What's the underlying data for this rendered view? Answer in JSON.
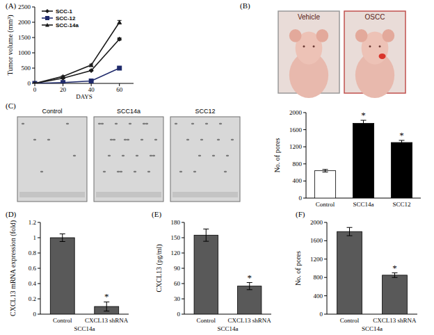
{
  "chart_data": [
    {
      "type": "line",
      "title": "(A)",
      "x_label": "DAYS",
      "y_label": "Tumor volume (mm³)",
      "x": [
        0,
        20,
        40,
        60
      ],
      "xlim": [
        0,
        70
      ],
      "xticks": [
        0,
        20,
        40,
        60
      ],
      "ylim": [
        0,
        2500
      ],
      "yticks": [
        0,
        500,
        1000,
        1500,
        2000,
        2500
      ],
      "legend": "upper left",
      "series": [
        {
          "name": "SCC-1",
          "color": "#1a1a1a",
          "marker": "diamond",
          "values": [
            0,
            170,
            420,
            1450
          ],
          "errors": [
            0,
            15,
            20,
            40
          ]
        },
        {
          "name": "SCC-12",
          "color": "#1f2a6b",
          "marker": "square",
          "values": [
            0,
            30,
            80,
            500
          ],
          "errors": [
            0,
            8,
            12,
            30
          ]
        },
        {
          "name": "SCC-14a",
          "color": "#1a1a1a",
          "marker": "triangle",
          "values": [
            0,
            230,
            600,
            2000
          ],
          "errors": [
            0,
            20,
            30,
            60
          ]
        }
      ]
    },
    {
      "type": "bar",
      "categories": [
        "Control",
        "SCC14a",
        "SCC12"
      ],
      "values": [
        640,
        1750,
        1300
      ],
      "errors": [
        30,
        70,
        50
      ],
      "colors": [
        "#ffffff",
        "#000000",
        "#000000"
      ],
      "annotations": [
        null,
        "*",
        "*"
      ],
      "y_label": "No. of pores",
      "ylim": [
        0,
        2000
      ],
      "yticks": [
        0,
        400,
        800,
        1200,
        1600,
        2000
      ]
    },
    {
      "type": "bar",
      "title": "(D)",
      "categories": [
        "Control",
        "CXCL13 shRNA"
      ],
      "x_label": "SCC14a",
      "y_label": "CXCL13 mRNA expression (fold)",
      "values": [
        1,
        0.1
      ],
      "errors": [
        0.05,
        0.06
      ],
      "color": "#595959",
      "annotations": [
        null,
        "*"
      ],
      "ylim": [
        0,
        1.2
      ],
      "yticks": [
        0,
        0.2,
        0.4,
        0.6,
        0.8,
        1,
        1.2
      ]
    },
    {
      "type": "bar",
      "title": "(E)",
      "categories": [
        "Control",
        "CXCL13 shRNA"
      ],
      "x_label": "SCC14a",
      "y_label": "CXCL13 (pg/ml)",
      "values": [
        155,
        55
      ],
      "errors": [
        12,
        7
      ],
      "color": "#595959",
      "annotations": [
        null,
        "*"
      ],
      "ylim": [
        0,
        180
      ],
      "yticks": [
        0,
        30,
        60,
        90,
        120,
        150,
        180
      ]
    },
    {
      "type": "bar",
      "title": "(F)",
      "categories": [
        "Control",
        "CXCL13 shRNA"
      ],
      "x_label": "SCC14a",
      "y_label": "No. of pores",
      "values": [
        1800,
        850
      ],
      "errors": [
        90,
        50
      ],
      "color": "#595959",
      "annotations": [
        null,
        "*"
      ],
      "ylim": [
        0,
        2000
      ],
      "yticks": [
        0,
        400,
        800,
        1200,
        1600,
        2000
      ]
    }
  ],
  "images": [
    {
      "title": "(B)",
      "labels": [
        "Vehicle",
        "OSCC"
      ]
    },
    {
      "title": "(C)",
      "labels": [
        "Control",
        "SCC14a",
        "SCC12"
      ]
    }
  ]
}
